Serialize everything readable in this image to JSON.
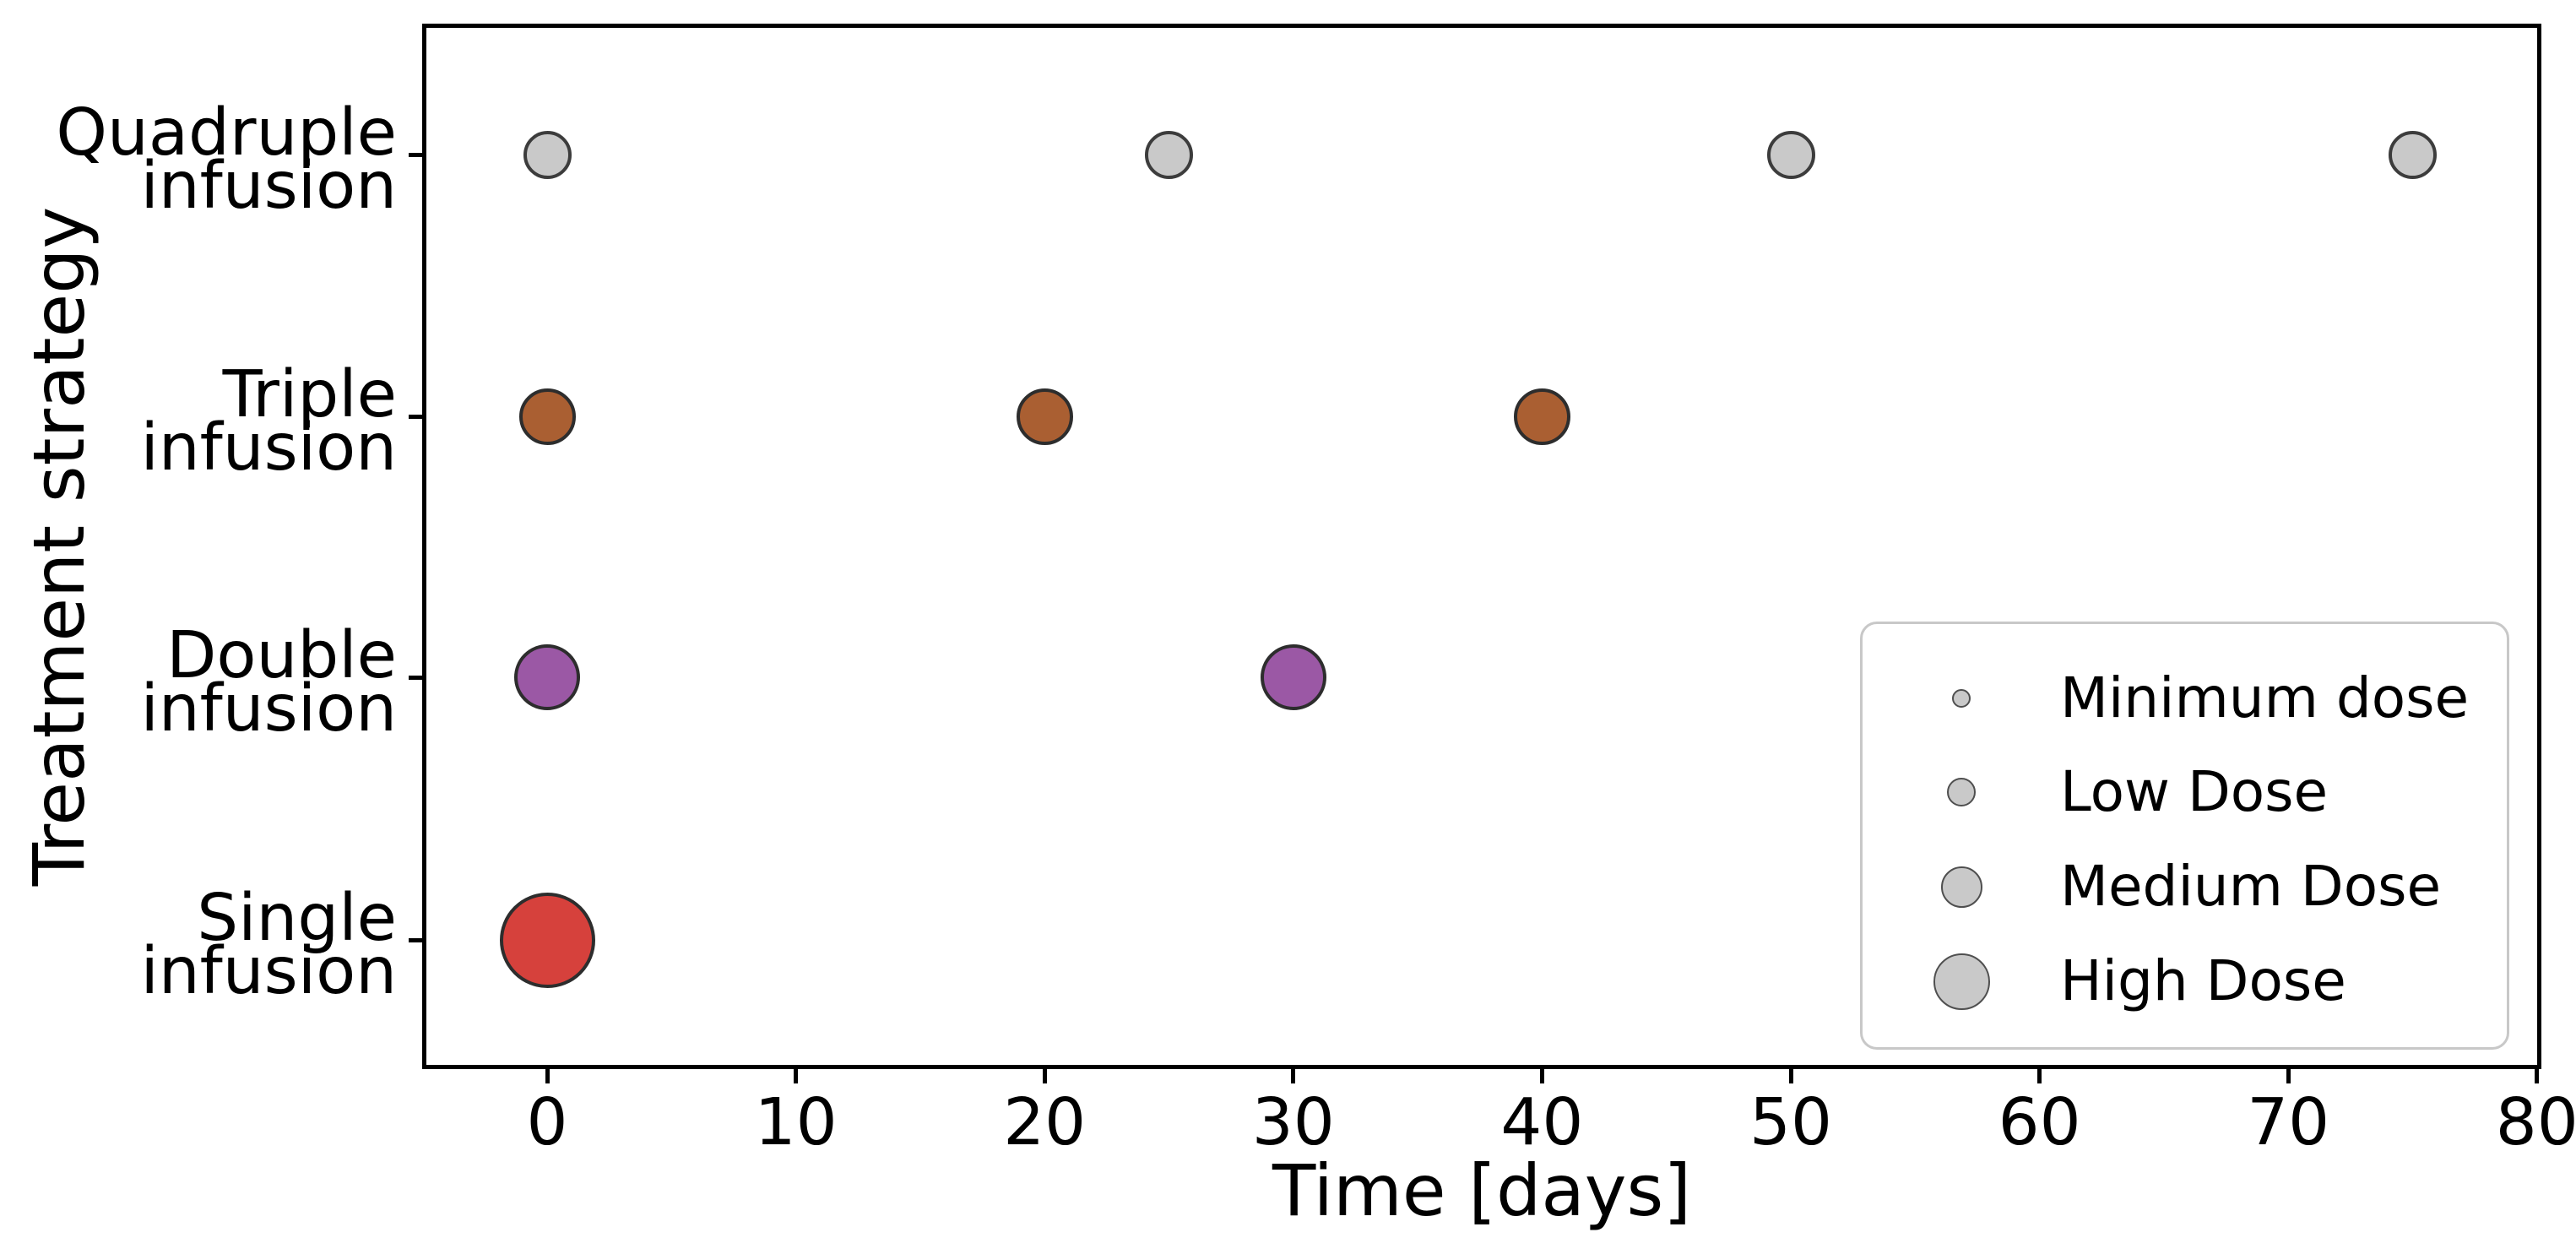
{
  "chart_data": {
    "type": "scatter",
    "title": "",
    "xlabel": "Time [days]",
    "ylabel": "Treatment strategy",
    "x_ticks": [
      0,
      10,
      20,
      30,
      40,
      50,
      60,
      70,
      80
    ],
    "xlim": [
      -5.0,
      80.2
    ],
    "grid": "dotted light-gray gridlines on both axes",
    "y_categories_top_to_bottom": [
      "Quadruple infusion",
      "Triple infusion",
      "Double infusion",
      "Single infusion"
    ],
    "series": [
      {
        "strategy": "Quadruple infusion",
        "label_lines": [
          "Quadruple",
          "infusion"
        ],
        "times_days": [
          0,
          25,
          50,
          75
        ],
        "color": "#c9c9c9",
        "edge_color": "#3c3c3c",
        "marker_diameter_px": 57,
        "implied_dose_level": "Minimum dose"
      },
      {
        "strategy": "Triple infusion",
        "label_lines": [
          "Triple",
          "infusion"
        ],
        "times_days": [
          0,
          20,
          40
        ],
        "color": "#aa5f32",
        "edge_color": "#2d2d2d",
        "marker_diameter_px": 67,
        "implied_dose_level": "Low Dose"
      },
      {
        "strategy": "Double infusion",
        "label_lines": [
          "Double",
          "infusion"
        ],
        "times_days": [
          0,
          30
        ],
        "color": "#9b58a5",
        "edge_color": "#2d2d2d",
        "marker_diameter_px": 78,
        "implied_dose_level": "Medium Dose"
      },
      {
        "strategy": "Single infusion",
        "label_lines": [
          "Single",
          "infusion"
        ],
        "times_days": [
          0
        ],
        "color": "#d6413c",
        "edge_color": "#2d2d2d",
        "marker_diameter_px": 113,
        "implied_dose_level": "High Dose"
      }
    ],
    "legend": {
      "position": "lower right",
      "marker_color": "#c9c9c9",
      "marker_edge_color": "#4f4f4f",
      "items": [
        {
          "label": "Minimum dose",
          "marker_diameter_px": 22
        },
        {
          "label": "Low Dose",
          "marker_diameter_px": 34
        },
        {
          "label": "Medium Dose",
          "marker_diameter_px": 49
        },
        {
          "label": "High Dose",
          "marker_diameter_px": 67
        }
      ]
    }
  },
  "colors": {
    "background": "#ffffff",
    "axis": "#000000",
    "grid": "#dcdcdc",
    "text": "#000000",
    "legend_border": "#c8c8c8"
  }
}
